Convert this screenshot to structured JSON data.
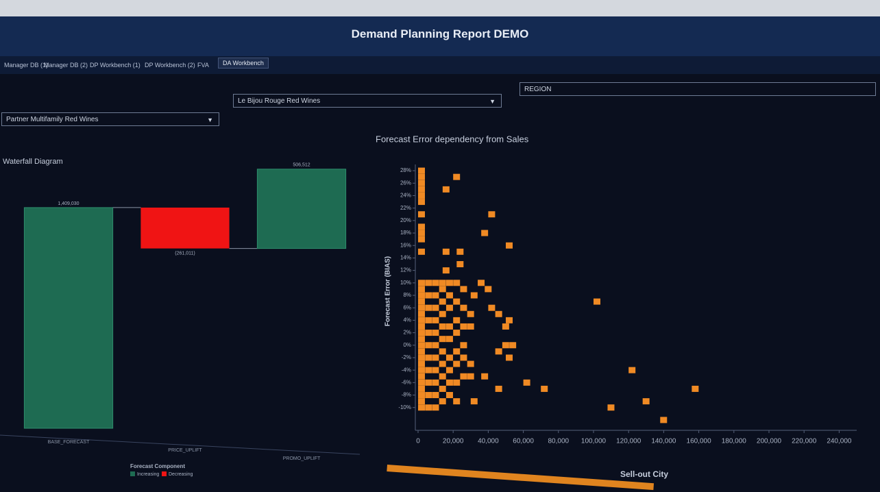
{
  "header": {
    "title": "Demand Planning Report DEMO"
  },
  "tabs": [
    "Manager DB (1)",
    "Manager DB (2)",
    "DP Workbench (1)",
    "DP Workbench (2)",
    "FVA",
    "DA Workbench"
  ],
  "filters": [
    "Partner Multifamily Red Wines",
    "Le Bijou Rouge Red Wines",
    "REGION"
  ],
  "chart_data": [
    {
      "type": "waterfall",
      "title": "Waterfall Diagram",
      "categories": [
        "BASE_FORECAST",
        "PRICE_UPLIFT",
        "PROMO_UPLIFT"
      ],
      "values": [
        1409030,
        -261011,
        506512
      ],
      "value_labels": [
        "1,409,030",
        "(261,011)",
        "506,512"
      ],
      "ylim": [
        0,
        1750000
      ],
      "legend_title": "Forecast Component",
      "legend": [
        {
          "name": "Increasing",
          "color": "#1e6b52"
        },
        {
          "name": "Decreasing",
          "color": "#f01414"
        }
      ]
    },
    {
      "type": "scatter",
      "title": "Forecast Error dependency from Sales",
      "x_label": "Sell-out City",
      "y_label": "Forecast Error (BIAS)",
      "color": "#f08a24",
      "x": [
        0,
        0,
        0,
        0,
        0,
        0,
        0,
        0,
        0,
        0,
        0,
        0,
        0,
        0,
        0,
        0,
        0,
        0,
        0,
        0,
        0,
        0,
        0,
        0,
        0,
        0,
        0,
        0,
        0,
        0,
        0,
        0,
        4000,
        4000,
        4000,
        4000,
        4000,
        4000,
        4000,
        4000,
        4000,
        4000,
        4000,
        8000,
        8000,
        8000,
        8000,
        8000,
        8000,
        8000,
        8000,
        8000,
        8000,
        8000,
        12000,
        12000,
        12000,
        12000,
        12000,
        12000,
        12000,
        12000,
        12000,
        12000,
        12000,
        16000,
        16000,
        16000,
        16000,
        16000,
        16000,
        16000,
        16000,
        16000,
        20000,
        20000,
        20000,
        20000,
        20000,
        20000,
        20000,
        20000,
        24000,
        24000,
        24000,
        24000,
        24000,
        24000,
        28000,
        28000,
        28000,
        28000,
        20000,
        14000,
        40000,
        36000,
        50000,
        14000,
        22000,
        22000,
        14000,
        34000,
        38000,
        30000,
        40000,
        44000,
        50000,
        48000,
        44000,
        48000,
        52000,
        50000,
        36000,
        44000,
        60000,
        70000,
        30000,
        100000,
        120000,
        156000,
        128000,
        108000,
        138000
      ],
      "values": [
        28,
        27,
        26,
        25,
        24,
        23,
        21,
        19,
        18,
        17,
        15,
        10,
        9,
        8,
        7,
        6,
        5,
        4,
        3,
        2,
        1,
        0,
        -1,
        -2,
        -3,
        -4,
        -5,
        -6,
        -7,
        -8,
        -9,
        -10,
        10,
        8,
        6,
        4,
        2,
        0,
        -2,
        -4,
        -6,
        -8,
        -10,
        10,
        8,
        6,
        4,
        2,
        0,
        -2,
        -4,
        -6,
        -8,
        -10,
        10,
        9,
        7,
        5,
        3,
        1,
        -1,
        -3,
        -5,
        -7,
        -9,
        10,
        8,
        6,
        3,
        1,
        -2,
        -4,
        -6,
        -8,
        10,
        7,
        4,
        2,
        -1,
        -3,
        -6,
        -9,
        9,
        6,
        3,
        0,
        -2,
        -5,
        5,
        3,
        -3,
        -5,
        27,
        25,
        21,
        18,
        16,
        15,
        15,
        13,
        12,
        10,
        9,
        8,
        6,
        5,
        4,
        3,
        -1,
        0,
        0,
        -2,
        -5,
        -7,
        -6,
        -7,
        -9,
        7,
        -4,
        -7,
        -9,
        -10,
        -12
      ],
      "xlim": [
        0,
        250000
      ],
      "ylim": [
        -13,
        29
      ],
      "xticks": [
        0,
        {
          "value": 20000,
          "label": "20,000"
        },
        {
          "value": 40000,
          "label": "40,000"
        },
        {
          "value": 60000,
          "label": "60,000"
        },
        {
          "value": 80000,
          "label": "80,000"
        },
        {
          "value": 100000,
          "label": "100,000"
        },
        {
          "value": 120000,
          "label": "120,000"
        },
        {
          "value": 140000,
          "label": "140,000"
        },
        {
          "value": 160000,
          "label": "160,000"
        },
        {
          "value": 180000,
          "label": "180,000"
        },
        {
          "value": 200000,
          "label": "200,000"
        },
        {
          "value": 220000,
          "label": "220,000"
        },
        {
          "value": 240000,
          "label": "240,000"
        }
      ],
      "yticks": [
        {
          "value": -10,
          "label": "-10%"
        },
        {
          "value": -8,
          "label": "-8%"
        },
        {
          "value": -6,
          "label": "-6%"
        },
        {
          "value": -4,
          "label": "-4%"
        },
        {
          "value": -2,
          "label": "-2%"
        },
        {
          "value": 0,
          "label": "0%"
        },
        {
          "value": 2,
          "label": "2%"
        },
        {
          "value": 4,
          "label": "4%"
        },
        {
          "value": 6,
          "label": "6%"
        },
        {
          "value": 8,
          "label": "8%"
        },
        {
          "value": 10,
          "label": "10%"
        },
        {
          "value": 12,
          "label": "12%"
        },
        {
          "value": 14,
          "label": "14%"
        },
        {
          "value": 16,
          "label": "16%"
        },
        {
          "value": 18,
          "label": "18%"
        },
        {
          "value": 20,
          "label": "20%"
        },
        {
          "value": 22,
          "label": "22%"
        },
        {
          "value": 24,
          "label": "24%"
        },
        {
          "value": 26,
          "label": "26%"
        },
        {
          "value": 28,
          "label": "28%"
        }
      ]
    }
  ]
}
